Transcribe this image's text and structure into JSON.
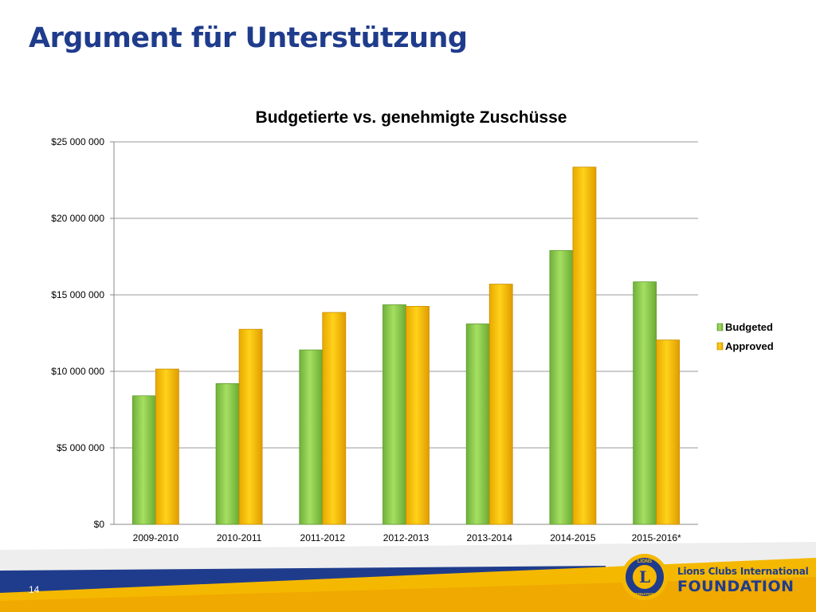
{
  "slide": {
    "title": "Argument für Unterstützung",
    "page_number": "14"
  },
  "brand": {
    "line1": "Lions Clubs International",
    "line2": "FOUNDATION",
    "logo_text": "LIONS",
    "logo_subtext": "INTERNATIONAL",
    "logo_letter": "L",
    "color_navy": "#1f3c8c",
    "color_gold": "#f5b800"
  },
  "chart_data": {
    "type": "bar",
    "title": "Budgetierte vs. genehmigte Zuschüsse",
    "xlabel": "",
    "ylabel": "",
    "categories": [
      "2009-2010",
      "2010-2011",
      "2011-2012",
      "2012-2013",
      "2013-2014",
      "2014-2015",
      "2015-2016*"
    ],
    "series": [
      {
        "name": "Budgeted",
        "color": "#8ecf4a",
        "values": [
          8400000,
          9200000,
          11400000,
          14350000,
          13100000,
          17900000,
          15850000
        ]
      },
      {
        "name": "Approved",
        "color": "#f8c400",
        "values": [
          10150000,
          12750000,
          13850000,
          14250000,
          15700000,
          23350000,
          12050000
        ]
      }
    ],
    "ylim": [
      0,
      25000000
    ],
    "yticks": [
      0,
      5000000,
      10000000,
      15000000,
      20000000,
      25000000
    ],
    "ytick_labels": [
      "$0",
      "$5 000 000",
      "$10 000 000",
      "$15 000 000",
      "$20 000 000",
      "$25 000 000"
    ],
    "grid": true,
    "legend_position": "right"
  }
}
